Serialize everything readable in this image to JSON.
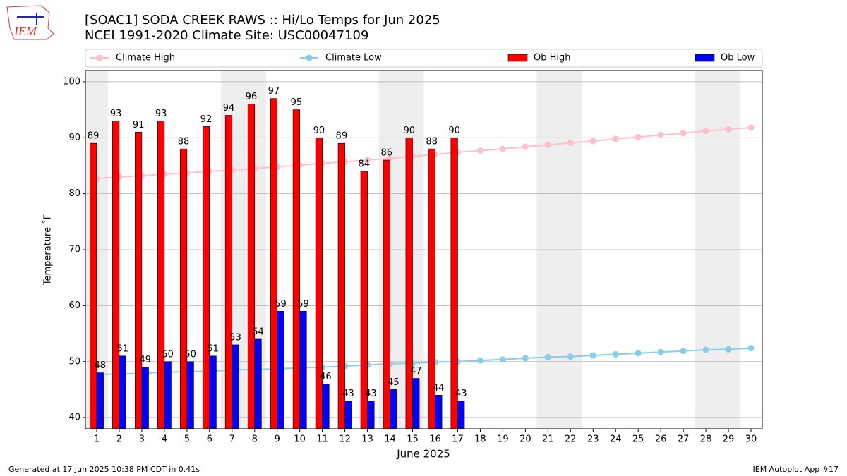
{
  "chart_data": {
    "type": "bar",
    "title": "[SOAC1] SODA CREEK RAWS :: Hi/Lo Temps for Jun 2025",
    "subtitle": "NCEI 1991-2020 Climate Site: USC00047109",
    "logo_text": "IEM",
    "x_label": "June 2025",
    "y_label": "Temperature ˚F",
    "footer_left": "Generated at 17 Jun 2025 10:38 PM CDT in 0.41s",
    "footer_right": "IEM Autoplot App #17",
    "x": [
      1,
      2,
      3,
      4,
      5,
      6,
      7,
      8,
      9,
      10,
      11,
      12,
      13,
      14,
      15,
      16,
      17,
      18,
      19,
      20,
      21,
      22,
      23,
      24,
      25,
      26,
      27,
      28,
      29,
      30
    ],
    "xlim": [
      0.5,
      30.5
    ],
    "xticks": [
      1,
      2,
      3,
      4,
      5,
      6,
      7,
      8,
      9,
      10,
      11,
      12,
      13,
      14,
      15,
      16,
      17,
      18,
      19,
      20,
      21,
      22,
      23,
      24,
      25,
      26,
      27,
      28,
      29,
      30
    ],
    "ylim": [
      38,
      102
    ],
    "yticks": [
      40,
      50,
      60,
      70,
      80,
      90,
      100
    ],
    "grid": "y",
    "shaded_ranges": [
      [
        0.5,
        1.5
      ],
      [
        6.5,
        8.5
      ],
      [
        13.5,
        15.5
      ],
      [
        20.5,
        22.5
      ],
      [
        27.5,
        29.5
      ]
    ],
    "shade_color": "#eeeeee",
    "series": [
      {
        "name": "Climate High",
        "type": "line",
        "color": "#ffc0cb",
        "values": [
          82.7,
          83.0,
          83.2,
          83.5,
          83.7,
          84.0,
          84.2,
          84.5,
          84.8,
          85.1,
          85.4,
          85.7,
          86.0,
          86.3,
          86.7,
          87.0,
          87.4,
          87.7,
          88.0,
          88.4,
          88.7,
          89.1,
          89.4,
          89.8,
          90.1,
          90.5,
          90.8,
          91.2,
          91.5,
          91.8
        ]
      },
      {
        "name": "Climate Low",
        "type": "line",
        "color": "#87ceeb",
        "values": [
          47.7,
          47.8,
          47.9,
          48.1,
          48.2,
          48.3,
          48.5,
          48.6,
          48.7,
          48.9,
          49.0,
          49.2,
          49.4,
          49.6,
          49.7,
          49.9,
          50.0,
          50.2,
          50.4,
          50.6,
          50.8,
          50.9,
          51.1,
          51.3,
          51.5,
          51.7,
          51.9,
          52.1,
          52.2,
          52.4
        ]
      },
      {
        "name": "Ob High",
        "type": "bar",
        "color": "#ff0000",
        "offset": -1,
        "values": [
          89,
          93,
          91,
          93,
          88,
          92,
          94,
          96,
          97,
          95,
          90,
          89,
          84,
          86,
          90,
          88,
          90,
          null,
          null,
          null,
          null,
          null,
          null,
          null,
          null,
          null,
          null,
          null,
          null,
          null
        ]
      },
      {
        "name": "Ob Low",
        "type": "bar",
        "color": "#0000ff",
        "offset": 0,
        "values": [
          48,
          51,
          49,
          50,
          50,
          51,
          53,
          54,
          59,
          59,
          46,
          43,
          43,
          45,
          47,
          44,
          43,
          null,
          null,
          null,
          null,
          null,
          null,
          null,
          null,
          null,
          null,
          null,
          null,
          null
        ]
      }
    ]
  }
}
